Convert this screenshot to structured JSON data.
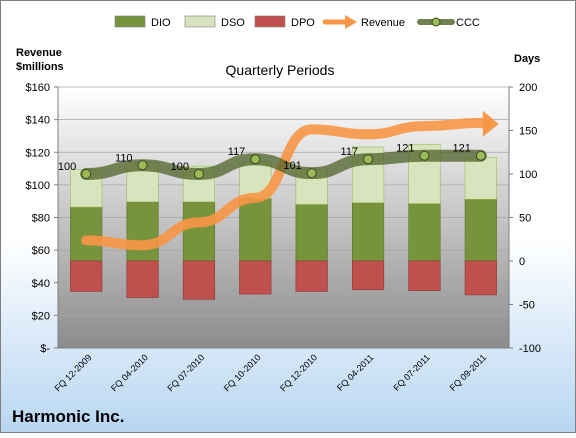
{
  "chart_data": {
    "type": "bar",
    "title": "Quarterly Periods",
    "company": "Harmonic Inc.",
    "left_axis_label": [
      "Revenue",
      "$millions"
    ],
    "right_axis_label": "Days",
    "left_ylim": [
      0,
      160
    ],
    "left_ticks": [
      "$-",
      "$20",
      "$40",
      "$60",
      "$80",
      "$100",
      "$120",
      "$140",
      "$160"
    ],
    "right_ylim": [
      -100,
      200
    ],
    "right_ticks": [
      "-100",
      "-50",
      "0",
      "50",
      "100",
      "150",
      "200"
    ],
    "categories": [
      "FQ 12-2009",
      "FQ 04-2010",
      "FQ 07-2010",
      "FQ 10-2010",
      "FQ 12-2010",
      "FQ 04-2011",
      "FQ 07-2011",
      "FQ 09-2011"
    ],
    "legend": [
      {
        "name": "DIO",
        "kind": "bar",
        "color": "#77933c"
      },
      {
        "name": "DSO",
        "kind": "bar",
        "color": "#d7e4bd"
      },
      {
        "name": "DPO",
        "kind": "bar",
        "color": "#c0504d"
      },
      {
        "name": "Revenue",
        "kind": "arrow",
        "color": "#f79646"
      },
      {
        "name": "CCC",
        "kind": "line",
        "color": "#4f6228"
      }
    ],
    "series": {
      "DIO": [
        62,
        68,
        68,
        72,
        65,
        67,
        66,
        71
      ],
      "DSO": [
        43,
        45,
        41,
        42,
        40,
        64,
        68,
        48
      ],
      "DPO": [
        -35,
        -42,
        -44,
        -38,
        -35,
        -33,
        -34,
        -39
      ],
      "CCC": [
        100,
        110,
        100,
        117,
        101,
        117,
        121,
        121
      ],
      "Revenue": [
        66,
        63,
        77,
        92,
        134,
        131,
        136,
        138
      ]
    },
    "ccc_labels": [
      "100",
      "110",
      "100",
      "117",
      "101",
      "117",
      "121",
      "121"
    ],
    "colors": {
      "dio": "#77933c",
      "dso": "#d7e4bd",
      "dpo": "#c0504d",
      "revenue": "#f79646",
      "ccc": "#4f6228",
      "plot_top": "#ffffff",
      "plot_bottom": "#8c8c8c",
      "frame_bottom": "#b8d6f2"
    }
  }
}
